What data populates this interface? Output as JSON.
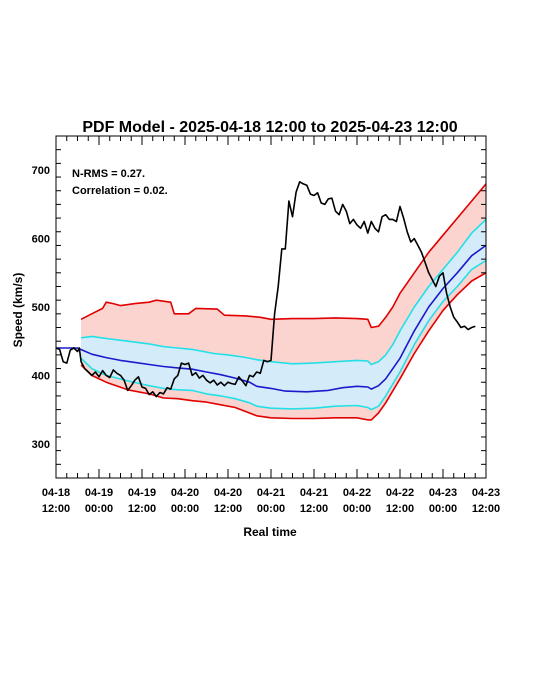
{
  "chart_data": {
    "type": "line",
    "title": "PDF Model - 2025-04-18 12:00 to 2025-04-23 12:00",
    "xlabel": "Real time",
    "ylabel": "Speed (km/s)",
    "xlim_hours": [
      0,
      120
    ],
    "ylim": [
      250,
      750
    ],
    "y_ticks": [
      300,
      400,
      500,
      600,
      700
    ],
    "x_ticks": [
      {
        "h": 0,
        "line1": "04-18",
        "line2": "12:00"
      },
      {
        "h": 12,
        "line1": "04-19",
        "line2": "00:00"
      },
      {
        "h": 24,
        "line1": "04-19",
        "line2": "12:00"
      },
      {
        "h": 36,
        "line1": "04-20",
        "line2": "00:00"
      },
      {
        "h": 48,
        "line1": "04-20",
        "line2": "12:00"
      },
      {
        "h": 60,
        "line1": "04-21",
        "line2": "00:00"
      },
      {
        "h": 72,
        "line1": "04-21",
        "line2": "12:00"
      },
      {
        "h": 84,
        "line1": "04-22",
        "line2": "00:00"
      },
      {
        "h": 96,
        "line1": "04-22",
        "line2": "12:00"
      },
      {
        "h": 108,
        "line1": "04-23",
        "line2": "00:00"
      },
      {
        "h": 120,
        "line1": "04-23",
        "line2": "12:00"
      }
    ],
    "annotations": [
      "N-RMS = 0.27.",
      "Correlation = 0.02."
    ],
    "colors": {
      "outer_band": "#e00000",
      "outer_fill": "#fbd3cf",
      "inner_band": "#22e0e8",
      "inner_fill": "#d4ecfa",
      "median": "#1a1acc",
      "observed": "#000000"
    },
    "series": [
      {
        "key": "upper_outer",
        "points": [
          [
            7,
            482
          ],
          [
            10,
            490
          ],
          [
            13,
            498
          ],
          [
            14,
            507
          ],
          [
            16,
            505
          ],
          [
            18,
            502
          ],
          [
            22,
            505
          ],
          [
            26,
            507
          ],
          [
            28,
            510
          ],
          [
            32,
            507
          ],
          [
            33,
            490
          ],
          [
            37,
            490
          ],
          [
            39,
            498
          ],
          [
            45,
            497
          ],
          [
            47,
            488
          ],
          [
            53,
            487
          ],
          [
            57,
            485
          ],
          [
            60,
            482
          ],
          [
            66,
            483
          ],
          [
            72,
            483
          ],
          [
            78,
            484
          ],
          [
            84,
            483
          ],
          [
            87,
            482
          ],
          [
            88,
            470
          ],
          [
            90,
            472
          ],
          [
            92,
            485
          ],
          [
            94,
            500
          ],
          [
            96,
            520
          ],
          [
            100,
            550
          ],
          [
            104,
            580
          ],
          [
            108,
            605
          ],
          [
            112,
            630
          ],
          [
            116,
            655
          ],
          [
            120,
            680
          ]
        ]
      },
      {
        "key": "upper_inner",
        "points": [
          [
            7,
            455
          ],
          [
            10,
            457
          ],
          [
            14,
            454
          ],
          [
            20,
            450
          ],
          [
            26,
            446
          ],
          [
            30,
            442
          ],
          [
            34,
            440
          ],
          [
            38,
            438
          ],
          [
            44,
            432
          ],
          [
            48,
            430
          ],
          [
            52,
            427
          ],
          [
            56,
            423
          ],
          [
            60,
            420
          ],
          [
            66,
            417
          ],
          [
            72,
            418
          ],
          [
            78,
            420
          ],
          [
            84,
            422
          ],
          [
            87,
            421
          ],
          [
            88,
            416
          ],
          [
            90,
            420
          ],
          [
            92,
            430
          ],
          [
            94,
            445
          ],
          [
            96,
            465
          ],
          [
            100,
            500
          ],
          [
            104,
            530
          ],
          [
            108,
            555
          ],
          [
            112,
            580
          ],
          [
            116,
            608
          ],
          [
            120,
            628
          ]
        ]
      },
      {
        "key": "median",
        "points": [
          [
            0,
            440
          ],
          [
            6,
            440
          ],
          [
            10,
            431
          ],
          [
            14,
            426
          ],
          [
            18,
            422
          ],
          [
            22,
            419
          ],
          [
            26,
            416
          ],
          [
            30,
            413
          ],
          [
            34,
            411
          ],
          [
            38,
            409
          ],
          [
            42,
            405
          ],
          [
            46,
            401
          ],
          [
            50,
            396
          ],
          [
            54,
            390
          ],
          [
            56,
            384
          ],
          [
            60,
            381
          ],
          [
            64,
            377
          ],
          [
            70,
            376
          ],
          [
            76,
            378
          ],
          [
            80,
            382
          ],
          [
            84,
            384
          ],
          [
            87,
            383
          ],
          [
            88,
            380
          ],
          [
            90,
            385
          ],
          [
            92,
            395
          ],
          [
            96,
            425
          ],
          [
            100,
            465
          ],
          [
            104,
            500
          ],
          [
            108,
            527
          ],
          [
            112,
            550
          ],
          [
            116,
            575
          ],
          [
            120,
            590
          ]
        ]
      },
      {
        "key": "lower_inner",
        "points": [
          [
            7,
            425
          ],
          [
            10,
            410
          ],
          [
            14,
            400
          ],
          [
            20,
            392
          ],
          [
            26,
            385
          ],
          [
            30,
            381
          ],
          [
            34,
            379
          ],
          [
            38,
            378
          ],
          [
            42,
            373
          ],
          [
            46,
            370
          ],
          [
            50,
            366
          ],
          [
            54,
            360
          ],
          [
            56,
            355
          ],
          [
            60,
            352
          ],
          [
            66,
            351
          ],
          [
            72,
            352
          ],
          [
            78,
            355
          ],
          [
            84,
            356
          ],
          [
            87,
            353
          ],
          [
            88,
            350
          ],
          [
            90,
            355
          ],
          [
            92,
            370
          ],
          [
            96,
            405
          ],
          [
            100,
            445
          ],
          [
            104,
            480
          ],
          [
            108,
            508
          ],
          [
            112,
            530
          ],
          [
            116,
            555
          ],
          [
            120,
            568
          ]
        ]
      },
      {
        "key": "lower_outer",
        "points": [
          [
            7,
            415
          ],
          [
            10,
            400
          ],
          [
            14,
            390
          ],
          [
            20,
            379
          ],
          [
            26,
            373
          ],
          [
            30,
            367
          ],
          [
            34,
            366
          ],
          [
            38,
            363
          ],
          [
            42,
            361
          ],
          [
            46,
            357
          ],
          [
            50,
            353
          ],
          [
            54,
            345
          ],
          [
            56,
            341
          ],
          [
            60,
            338
          ],
          [
            66,
            337
          ],
          [
            72,
            337
          ],
          [
            78,
            338
          ],
          [
            84,
            338
          ],
          [
            87,
            335
          ],
          [
            88,
            335
          ],
          [
            90,
            345
          ],
          [
            92,
            360
          ],
          [
            96,
            395
          ],
          [
            100,
            432
          ],
          [
            104,
            465
          ],
          [
            108,
            495
          ],
          [
            112,
            518
          ],
          [
            116,
            538
          ],
          [
            120,
            550
          ]
        ]
      },
      {
        "key": "observed",
        "points": [
          [
            0,
            440
          ],
          [
            1,
            438
          ],
          [
            2,
            420
          ],
          [
            3,
            418
          ],
          [
            4,
            437
          ],
          [
            5,
            440
          ],
          [
            6,
            435
          ],
          [
            6.5,
            440
          ],
          [
            7,
            420
          ],
          [
            8,
            410
          ],
          [
            9,
            405
          ],
          [
            10,
            400
          ],
          [
            11,
            405
          ],
          [
            12,
            398
          ],
          [
            13,
            407
          ],
          [
            14,
            400
          ],
          [
            15,
            397
          ],
          [
            16,
            408
          ],
          [
            17,
            403
          ],
          [
            18,
            400
          ],
          [
            19,
            393
          ],
          [
            20,
            378
          ],
          [
            21,
            385
          ],
          [
            22,
            393
          ],
          [
            23,
            398
          ],
          [
            24,
            383
          ],
          [
            25,
            381
          ],
          [
            26,
            372
          ],
          [
            27,
            376
          ],
          [
            28,
            369
          ],
          [
            29,
            375
          ],
          [
            30,
            373
          ],
          [
            31,
            382
          ],
          [
            32,
            380
          ],
          [
            33,
            395
          ],
          [
            34,
            400
          ],
          [
            35,
            418
          ],
          [
            36,
            416
          ],
          [
            37,
            418
          ],
          [
            38,
            400
          ],
          [
            39,
            404
          ],
          [
            40,
            396
          ],
          [
            41,
            400
          ],
          [
            42,
            393
          ],
          [
            43,
            389
          ],
          [
            44,
            393
          ],
          [
            45,
            386
          ],
          [
            46,
            390
          ],
          [
            47,
            385
          ],
          [
            48,
            390
          ],
          [
            49,
            388
          ],
          [
            50,
            387
          ],
          [
            51,
            398
          ],
          [
            52,
            392
          ],
          [
            53,
            385
          ],
          [
            54,
            400
          ],
          [
            55,
            398
          ],
          [
            56,
            405
          ],
          [
            57,
            403
          ],
          [
            58,
            422
          ],
          [
            59,
            420
          ],
          [
            60,
            422
          ],
          [
            61,
            490
          ],
          [
            62,
            530
          ],
          [
            63,
            585
          ],
          [
            64,
            585
          ],
          [
            65,
            655
          ],
          [
            66,
            632
          ],
          [
            67,
            668
          ],
          [
            68,
            683
          ],
          [
            69,
            680
          ],
          [
            70,
            678
          ],
          [
            71,
            665
          ],
          [
            72,
            663
          ],
          [
            73,
            667
          ],
          [
            74,
            652
          ],
          [
            75,
            650
          ],
          [
            76,
            658
          ],
          [
            77,
            659
          ],
          [
            78,
            640
          ],
          [
            79,
            635
          ],
          [
            80,
            650
          ],
          [
            81,
            640
          ],
          [
            82,
            622
          ],
          [
            83,
            628
          ],
          [
            84,
            620
          ],
          [
            85,
            615
          ],
          [
            86,
            625
          ],
          [
            87,
            608
          ],
          [
            88,
            625
          ],
          [
            89,
            615
          ],
          [
            90,
            610
          ],
          [
            91,
            632
          ],
          [
            92,
            635
          ],
          [
            93,
            628
          ],
          [
            94,
            628
          ],
          [
            95,
            625
          ],
          [
            96,
            647
          ],
          [
            97,
            630
          ],
          [
            98,
            610
          ],
          [
            99,
            595
          ],
          [
            100,
            600
          ],
          [
            101,
            590
          ],
          [
            102,
            580
          ],
          [
            103,
            565
          ],
          [
            104,
            550
          ],
          [
            105,
            540
          ],
          [
            106,
            530
          ],
          [
            107,
            545
          ],
          [
            108,
            550
          ],
          [
            109,
            520
          ],
          [
            110,
            500
          ],
          [
            111,
            485
          ],
          [
            112,
            478
          ],
          [
            113,
            470
          ],
          [
            114,
            472
          ],
          [
            115,
            467
          ],
          [
            116,
            470
          ],
          [
            117,
            472
          ]
        ]
      }
    ]
  }
}
